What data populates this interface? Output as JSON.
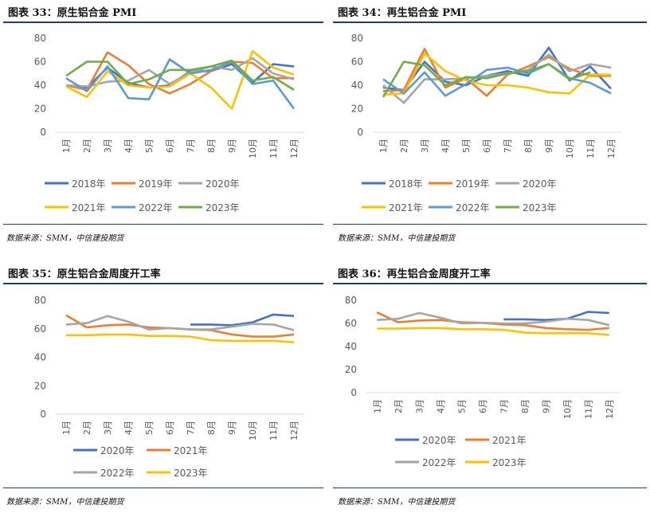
{
  "month_labels": [
    "1月",
    "2月",
    "3月",
    "4月",
    "5月",
    "6月",
    "7月",
    "8月",
    "9月",
    "10月",
    "11月",
    "12月"
  ],
  "panels": [
    {
      "title": "图表  33：原生铝合金 PMI",
      "source": "数据来源：SMM，中信建投期货",
      "chart_data": {
        "type": "line",
        "title": "原生铝合金 PMI",
        "ylim": [
          0,
          80
        ],
        "yticks": [
          0,
          20,
          40,
          60,
          80
        ],
        "legend_rows": [
          [
            0,
            1,
            2
          ],
          [
            3,
            4,
            5
          ]
        ],
        "series": [
          {
            "name": "2018年",
            "color": "#4472c4",
            "values": [
              40,
              38,
              55,
              42,
              38,
              40,
              52,
              52,
              58,
              42,
              58,
              56
            ]
          },
          {
            "name": "2019年",
            "color": "#ed7d31",
            "values": [
              40,
              36,
              68,
              57,
              41,
              33,
              41,
              52,
              60,
              59,
              46,
              46
            ]
          },
          {
            "name": "2020年",
            "color": "#a5a5a5",
            "values": [
              40,
              39,
              43,
              44,
              53,
              41,
              51,
              56,
              53,
              63,
              50,
              45
            ]
          },
          {
            "name": "2021年",
            "color": "#ffc000",
            "values": [
              39,
              30,
              52,
              40,
              38,
              39,
              50,
              38,
              20,
              69,
              55,
              49
            ]
          },
          {
            "name": "2022年",
            "color": "#5b9bd5",
            "values": [
              46,
              35,
              56,
              29,
              28,
              62,
              50,
              53,
              60,
              41,
              44,
              20
            ]
          },
          {
            "name": "2023年",
            "color": "#70ad47",
            "values": [
              48,
              60,
              60,
              41,
              45,
              53,
              53,
              56,
              61,
              44,
              47,
              36
            ]
          }
        ]
      }
    },
    {
      "title": "图表  34：再生铝合金 PMI",
      "source": "数据来源：SMM，中信建投期货",
      "chart_data": {
        "type": "line",
        "title": "再生铝合金 PMI",
        "ylim": [
          0,
          80
        ],
        "yticks": [
          0,
          20,
          40,
          60,
          80
        ],
        "legend_rows": [
          [
            0,
            1,
            2
          ],
          [
            3,
            4,
            5
          ]
        ],
        "series": [
          {
            "name": "2018年",
            "color": "#4472c4",
            "values": [
              38,
              36,
              60,
              43,
              40,
              48,
              52,
              48,
              72,
              44,
              56,
              37
            ]
          },
          {
            "name": "2019年",
            "color": "#ed7d31",
            "values": [
              35,
              36,
              71,
              38,
              46,
              31,
              49,
              56,
              64,
              54,
              48,
              48
            ]
          },
          {
            "name": "2020年",
            "color": "#a5a5a5",
            "values": [
              40,
              25,
              45,
              45,
              46,
              48,
              50,
              53,
              66,
              52,
              58,
              55
            ]
          },
          {
            "name": "2021年",
            "color": "#ffc000",
            "values": [
              32,
              33,
              67,
              52,
              44,
              40,
              40,
              38,
              34,
              33,
              49,
              49
            ]
          },
          {
            "name": "2022年",
            "color": "#5b9bd5",
            "values": [
              45,
              33,
              51,
              31,
              41,
              53,
              55,
              50,
              58,
              46,
              42,
              33
            ]
          },
          {
            "name": "2023年",
            "color": "#70ad47",
            "values": [
              30,
              60,
              57,
              40,
              47,
              46,
              50,
              52,
              58,
              45,
              51,
              null
            ]
          }
        ]
      }
    },
    {
      "title": "图表  35：原生铝合金周度开工率",
      "source": "数据来源：SMM，中信建投期货",
      "chart_data": {
        "type": "line",
        "title": "原生铝合金周度开工率",
        "ylim": [
          0,
          80
        ],
        "yticks": [
          0,
          20,
          40,
          60,
          80
        ],
        "legend_rows": [
          [
            0,
            1
          ],
          [
            2,
            3
          ]
        ],
        "series": [
          {
            "name": "2020年",
            "color": "#4472c4",
            "values": [
              null,
              null,
              null,
              null,
              null,
              null,
              63,
              63,
              62.5,
              64.5,
              70,
              69
            ]
          },
          {
            "name": "2021年",
            "color": "#ed7d31",
            "values": [
              69.5,
              61,
              62.5,
              63,
              61,
              60.5,
              59.5,
              59,
              56,
              54.5,
              54.5,
              56
            ]
          },
          {
            "name": "2022年",
            "color": "#a5a5a5",
            "values": [
              63,
              64,
              69,
              65,
              59.5,
              60.5,
              59.5,
              59.5,
              61.5,
              63.5,
              63,
              59
            ]
          },
          {
            "name": "2023年",
            "color": "#ffc000",
            "values": [
              55.5,
              55.5,
              56,
              56,
              55,
              55,
              54.5,
              52,
              51.5,
              51.5,
              51.5,
              50.5
            ]
          }
        ]
      }
    },
    {
      "title": "图表  36：再生铝合金周度开工率",
      "source": "数据来源：SMM，中信建投期货",
      "chart_data": {
        "type": "line",
        "title": "再生铝合金周度开工率",
        "ylim": [
          0,
          80
        ],
        "yticks": [
          0,
          20,
          40,
          60,
          80
        ],
        "legend_rows": [
          [
            0,
            1
          ],
          [
            2,
            3
          ]
        ],
        "series": [
          {
            "name": "2020年",
            "color": "#4472c4",
            "values": [
              null,
              null,
              null,
              null,
              null,
              null,
              63.5,
              63.5,
              63,
              64,
              70,
              69
            ]
          },
          {
            "name": "2021年",
            "color": "#ed7d31",
            "values": [
              69.5,
              61,
              62.5,
              63,
              61,
              60.5,
              59,
              58.5,
              56,
              55,
              54.5,
              56
            ]
          },
          {
            "name": "2022年",
            "color": "#a5a5a5",
            "values": [
              63,
              64,
              69,
              65,
              60,
              60.5,
              60,
              60,
              61.5,
              64,
              63,
              58.5
            ]
          },
          {
            "name": "2023年",
            "color": "#ffc000",
            "values": [
              55.5,
              55.5,
              56,
              56,
              55,
              55,
              54.5,
              52,
              51.5,
              51.5,
              51.5,
              50
            ]
          }
        ]
      }
    }
  ]
}
